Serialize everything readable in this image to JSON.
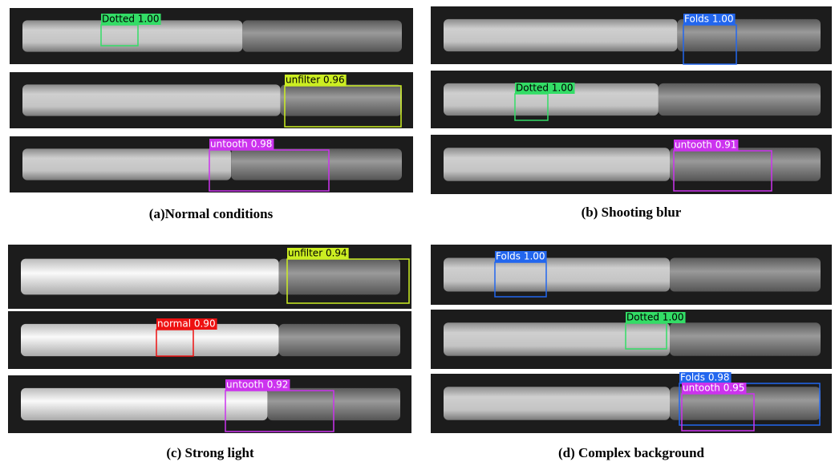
{
  "panels": [
    {
      "caption": "(a)Normal conditions",
      "images": [
        {
          "detections": [
            {
              "label": "Dotted 1.00"
            }
          ]
        },
        {
          "detections": [
            {
              "label": "unfilter 0.96"
            }
          ]
        },
        {
          "detections": [
            {
              "label": "untooth 0.98"
            }
          ]
        }
      ]
    },
    {
      "caption": "(b) Shooting blur",
      "images": [
        {
          "detections": [
            {
              "label": "Folds 1.00"
            }
          ]
        },
        {
          "detections": [
            {
              "label": "Dotted 1.00"
            }
          ]
        },
        {
          "detections": [
            {
              "label": "untooth 0.91"
            }
          ]
        }
      ]
    },
    {
      "caption": "(c) Strong light",
      "images": [
        {
          "detections": [
            {
              "label": "unfilter 0.94"
            }
          ]
        },
        {
          "detections": [
            {
              "label": "normal 0.90"
            }
          ]
        },
        {
          "detections": [
            {
              "label": "untooth 0.92"
            }
          ]
        }
      ]
    },
    {
      "caption": "(d) Complex background",
      "images": [
        {
          "detections": [
            {
              "label": "Folds 1.00"
            }
          ]
        },
        {
          "detections": [
            {
              "label": "Dotted 1.00"
            }
          ]
        },
        {
          "detections": [
            {
              "label": "Folds 0.98"
            },
            {
              "label": "untooth 0.95"
            }
          ]
        }
      ]
    }
  ]
}
